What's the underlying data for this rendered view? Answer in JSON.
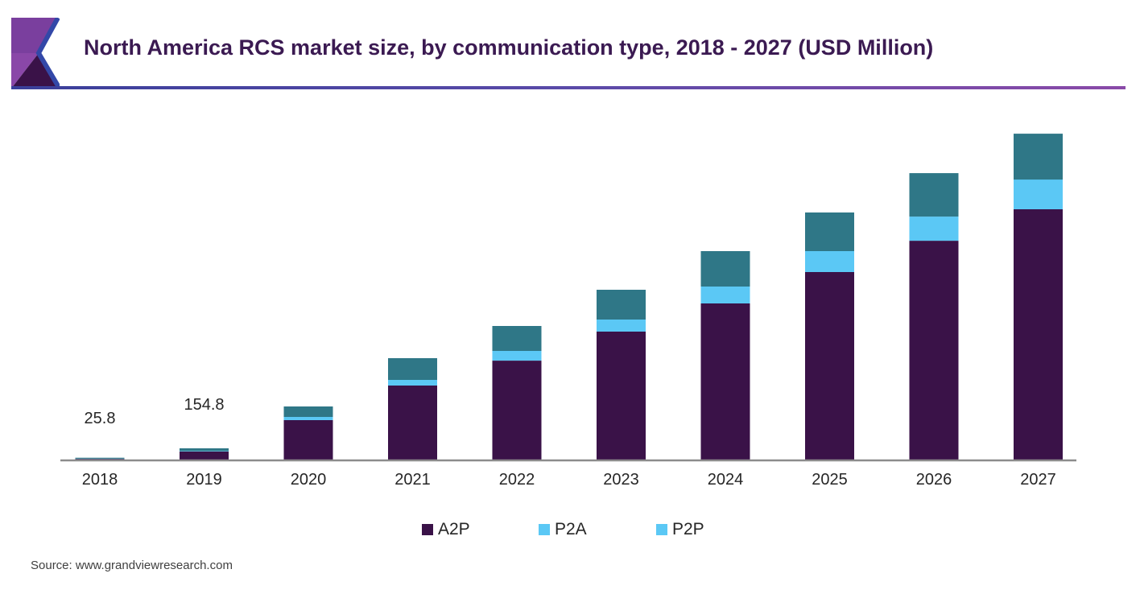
{
  "header": {
    "title": "North America RCS market size, by communication type, 2018 - 2027 (USD Million)"
  },
  "source": "Source: www.grandviewresearch.com",
  "colors": {
    "A2P": "#3a1248",
    "P2A": "#5bc8f5",
    "P2P": "#2f7787",
    "title": "#3b1a52"
  },
  "chart_data": {
    "type": "bar",
    "stacked": true,
    "title": "North America RCS market size, by communication type, 2018 - 2027 (USD Million)",
    "xlabel": "",
    "ylabel": "",
    "categories": [
      "2018",
      "2019",
      "2020",
      "2021",
      "2022",
      "2023",
      "2024",
      "2025",
      "2026",
      "2027"
    ],
    "series": [
      {
        "name": "A2P",
        "values": [
          10.0,
          110.6,
          542,
          1018,
          1360,
          1759,
          2146,
          2577,
          3008,
          3440
        ]
      },
      {
        "name": "P2A",
        "values": [
          3.3,
          8.0,
          44,
          77,
          133,
          166,
          232,
          288,
          332,
          409
        ]
      },
      {
        "name": "P2P",
        "values": [
          12.5,
          36.2,
          144,
          299,
          343,
          409,
          487,
          531,
          597,
          630
        ]
      }
    ],
    "data_labels": [
      {
        "category": "2018",
        "text": "25.8"
      },
      {
        "category": "2019",
        "text": "154.8"
      }
    ],
    "legend": {
      "position": "bottom",
      "entries": [
        {
          "name": "A2P",
          "swatch": "#3a1248"
        },
        {
          "name": "P2A",
          "swatch": "#5bc8f5"
        },
        {
          "name": "P2P",
          "swatch": "#5bc8f5"
        }
      ]
    },
    "ylim": [
      0,
      4600
    ],
    "grid": false,
    "y_axis_visible": false
  }
}
